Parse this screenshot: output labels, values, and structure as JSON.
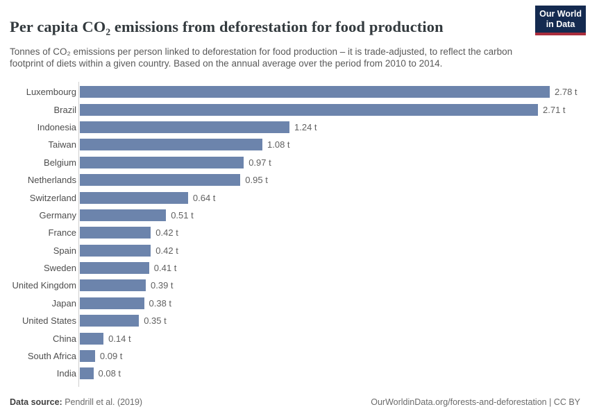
{
  "header": {
    "title": "Per capita CO₂ emissions from deforestation for food production",
    "subtitle": "Tonnes of CO₂ emissions per person linked to deforestation for food production – it is trade-adjusted, to reflect the carbon footprint of diets within a given country. Based on the annual average over the period from 2010 to 2014.",
    "logo": {
      "line1": "Our World",
      "line2": "in Data"
    }
  },
  "chart_data": {
    "type": "bar",
    "orientation": "horizontal",
    "title": "Per capita CO₂ emissions from deforestation for food production",
    "unit": "t",
    "xlim": [
      0,
      2.78
    ],
    "grid": false,
    "bar_color": "#6c84ac",
    "categories": [
      "Luxembourg",
      "Brazil",
      "Indonesia",
      "Taiwan",
      "Belgium",
      "Netherlands",
      "Switzerland",
      "Germany",
      "France",
      "Spain",
      "Sweden",
      "United Kingdom",
      "Japan",
      "United States",
      "China",
      "South Africa",
      "India"
    ],
    "values": [
      2.78,
      2.71,
      1.24,
      1.08,
      0.97,
      0.95,
      0.64,
      0.51,
      0.42,
      0.42,
      0.41,
      0.39,
      0.38,
      0.35,
      0.14,
      0.09,
      0.08
    ],
    "value_labels": [
      "2.78 t",
      "2.71 t",
      "1.24 t",
      "1.08 t",
      "0.97 t",
      "0.95 t",
      "0.64 t",
      "0.51 t",
      "0.42 t",
      "0.42 t",
      "0.41 t",
      "0.39 t",
      "0.38 t",
      "0.35 t",
      "0.14 t",
      "0.09 t",
      "0.08 t"
    ]
  },
  "footer": {
    "source_label": "Data source:",
    "source_value": " Pendrill et al. (2019)",
    "right_text": "OurWorldinData.org/forests-and-deforestation | CC BY"
  },
  "colors": {
    "bar": "#6c84ac",
    "logo_bg": "#142a50",
    "logo_red": "#aa2d3c",
    "axis_line": "#cfcfcf"
  }
}
